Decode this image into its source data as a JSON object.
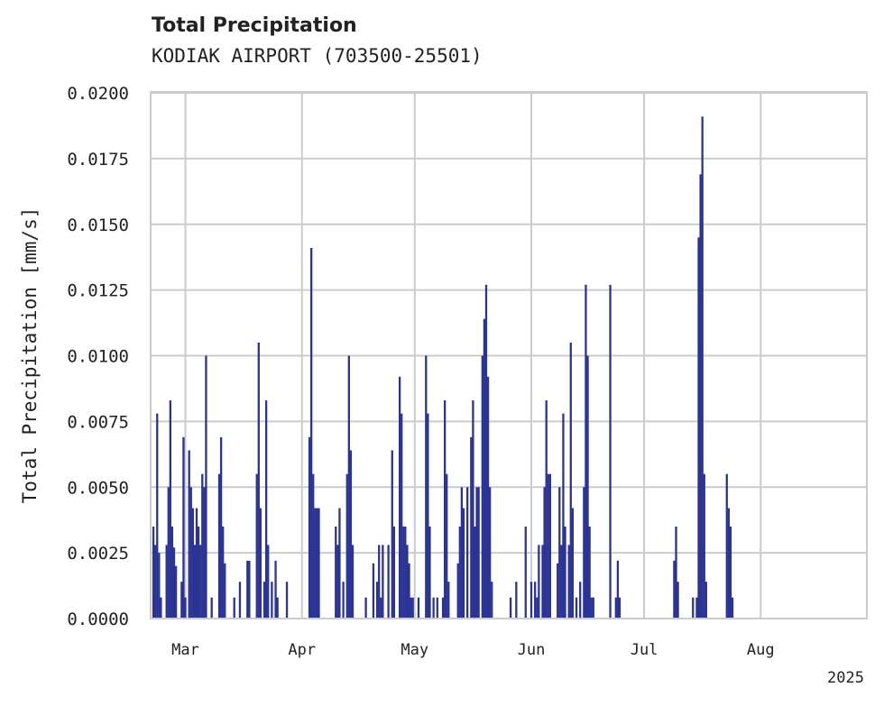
{
  "chart_data": {
    "type": "bar",
    "title": "Total Precipitation",
    "subtitle": "KODIAK AIRPORT (703500-25501)",
    "xlabel": "",
    "ylabel": "Total Precipitation [mm/s]",
    "ylim": [
      0,
      0.02
    ],
    "yticks": [
      "0.0000",
      "0.0025",
      "0.0050",
      "0.0075",
      "0.0100",
      "0.0125",
      "0.0150",
      "0.0175",
      "0.0200"
    ],
    "xlim": [
      "2025-02-20",
      "2025-08-29"
    ],
    "xticks": [
      {
        "date": "2025-03-01",
        "label": "Mar"
      },
      {
        "date": "2025-04-01",
        "label": "Apr"
      },
      {
        "date": "2025-05-01",
        "label": "May"
      },
      {
        "date": "2025-06-01",
        "label": "Jun"
      },
      {
        "date": "2025-07-01",
        "label": "Jul"
      },
      {
        "date": "2025-08-01",
        "label": "Aug"
      }
    ],
    "year_label": "2025",
    "grid": true,
    "color": "#2b3494",
    "series": [
      {
        "name": "",
        "values": [
          [
            "2025-02-20T12:00",
            0.0035
          ],
          [
            "2025-02-21T00:00",
            0.0028
          ],
          [
            "2025-02-21T12:00",
            0.0078
          ],
          [
            "2025-02-22T00:00",
            0.0025
          ],
          [
            "2025-02-22T12:00",
            0.0008
          ],
          [
            "2025-02-24T00:00",
            0.0028
          ],
          [
            "2025-02-24T12:00",
            0.005
          ],
          [
            "2025-02-25T00:00",
            0.0083
          ],
          [
            "2025-02-25T12:00",
            0.0035
          ],
          [
            "2025-02-26T00:00",
            0.0027
          ],
          [
            "2025-02-26T12:00",
            0.002
          ],
          [
            "2025-02-28T00:00",
            0.0014
          ],
          [
            "2025-02-28T12:00",
            0.0069
          ],
          [
            "2025-03-01T00:00",
            0.0008
          ],
          [
            "2025-03-02T00:00",
            0.0064
          ],
          [
            "2025-03-02T12:00",
            0.005
          ],
          [
            "2025-03-03T00:00",
            0.0042
          ],
          [
            "2025-03-03T12:00",
            0.0028
          ],
          [
            "2025-03-04T00:00",
            0.0042
          ],
          [
            "2025-03-04T12:00",
            0.0035
          ],
          [
            "2025-03-05T00:00",
            0.0028
          ],
          [
            "2025-03-05T12:00",
            0.0055
          ],
          [
            "2025-03-06T00:00",
            0.005
          ],
          [
            "2025-03-06T12:00",
            0.01
          ],
          [
            "2025-03-08T00:00",
            0.0008
          ],
          [
            "2025-03-10T00:00",
            0.0055
          ],
          [
            "2025-03-10T12:00",
            0.0069
          ],
          [
            "2025-03-11T00:00",
            0.0035
          ],
          [
            "2025-03-11T12:00",
            0.0021
          ],
          [
            "2025-03-14T00:00",
            0.0008
          ],
          [
            "2025-03-15T12:00",
            0.0014
          ],
          [
            "2025-03-17T12:00",
            0.0022
          ],
          [
            "2025-03-18T00:00",
            0.0022
          ],
          [
            "2025-03-20T00:00",
            0.0055
          ],
          [
            "2025-03-20T12:00",
            0.0105
          ],
          [
            "2025-03-21T00:00",
            0.0042
          ],
          [
            "2025-03-22T00:00",
            0.0014
          ],
          [
            "2025-03-22T12:00",
            0.0083
          ],
          [
            "2025-03-23T00:00",
            0.0028
          ],
          [
            "2025-03-24T00:00",
            0.0014
          ],
          [
            "2025-03-25T00:00",
            0.0022
          ],
          [
            "2025-03-25T12:00",
            0.0008
          ],
          [
            "2025-03-28T00:00",
            0.0014
          ],
          [
            "2025-04-03T00:00",
            0.0069
          ],
          [
            "2025-04-03T12:00",
            0.0141
          ],
          [
            "2025-04-04T00:00",
            0.0055
          ],
          [
            "2025-04-04T12:00",
            0.0042
          ],
          [
            "2025-04-05T00:00",
            0.0042
          ],
          [
            "2025-04-05T12:00",
            0.0042
          ],
          [
            "2025-04-10T00:00",
            0.0035
          ],
          [
            "2025-04-10T12:00",
            0.0028
          ],
          [
            "2025-04-11T00:00",
            0.0042
          ],
          [
            "2025-04-12T00:00",
            0.0014
          ],
          [
            "2025-04-13T00:00",
            0.0055
          ],
          [
            "2025-04-13T12:00",
            0.01
          ],
          [
            "2025-04-14T00:00",
            0.0064
          ],
          [
            "2025-04-14T12:00",
            0.0028
          ],
          [
            "2025-04-18T00:00",
            0.0008
          ],
          [
            "2025-04-20T00:00",
            0.0021
          ],
          [
            "2025-04-21T00:00",
            0.0014
          ],
          [
            "2025-04-21T12:00",
            0.0028
          ],
          [
            "2025-04-22T00:00",
            0.0008
          ],
          [
            "2025-04-22T12:00",
            0.0028
          ],
          [
            "2025-04-24T00:00",
            0.0028
          ],
          [
            "2025-04-25T00:00",
            0.0064
          ],
          [
            "2025-04-25T12:00",
            0.0035
          ],
          [
            "2025-04-27T00:00",
            0.0092
          ],
          [
            "2025-04-27T12:00",
            0.0078
          ],
          [
            "2025-04-28T00:00",
            0.0035
          ],
          [
            "2025-04-28T12:00",
            0.0035
          ],
          [
            "2025-04-29T00:00",
            0.0028
          ],
          [
            "2025-04-29T12:00",
            0.0021
          ],
          [
            "2025-04-30T00:00",
            0.0008
          ],
          [
            "2025-04-30T12:00",
            0.0008
          ],
          [
            "2025-05-02T00:00",
            0.0008
          ],
          [
            "2025-05-04T00:00",
            0.01
          ],
          [
            "2025-05-04T12:00",
            0.0078
          ],
          [
            "2025-05-05T00:00",
            0.0035
          ],
          [
            "2025-05-06T00:00",
            0.0008
          ],
          [
            "2025-05-07T00:00",
            0.0008
          ],
          [
            "2025-05-08T12:00",
            0.0008
          ],
          [
            "2025-05-09T00:00",
            0.0083
          ],
          [
            "2025-05-09T12:00",
            0.0055
          ],
          [
            "2025-05-10T00:00",
            0.0014
          ],
          [
            "2025-05-12T12:00",
            0.0021
          ],
          [
            "2025-05-13T00:00",
            0.0035
          ],
          [
            "2025-05-13T12:00",
            0.005
          ],
          [
            "2025-05-14T00:00",
            0.0042
          ],
          [
            "2025-05-15T00:00",
            0.005
          ],
          [
            "2025-05-16T00:00",
            0.0069
          ],
          [
            "2025-05-16T12:00",
            0.0083
          ],
          [
            "2025-05-17T00:00",
            0.0035
          ],
          [
            "2025-05-17T12:00",
            0.005
          ],
          [
            "2025-05-18T00:00",
            0.005
          ],
          [
            "2025-05-19T00:00",
            0.01
          ],
          [
            "2025-05-19T12:00",
            0.0114
          ],
          [
            "2025-05-20T00:00",
            0.0127
          ],
          [
            "2025-05-20T12:00",
            0.0092
          ],
          [
            "2025-05-21T00:00",
            0.005
          ],
          [
            "2025-05-21T12:00",
            0.0014
          ],
          [
            "2025-05-26T12:00",
            0.0008
          ],
          [
            "2025-05-28T00:00",
            0.0014
          ],
          [
            "2025-05-30T12:00",
            0.0035
          ],
          [
            "2025-06-01T00:00",
            0.0014
          ],
          [
            "2025-06-02T00:00",
            0.0014
          ],
          [
            "2025-06-02T12:00",
            0.0008
          ],
          [
            "2025-06-03T00:00",
            0.0028
          ],
          [
            "2025-06-04T00:00",
            0.0028
          ],
          [
            "2025-06-04T12:00",
            0.005
          ],
          [
            "2025-06-05T00:00",
            0.0083
          ],
          [
            "2025-06-05T12:00",
            0.0055
          ],
          [
            "2025-06-06T00:00",
            0.0055
          ],
          [
            "2025-06-08T00:00",
            0.0021
          ],
          [
            "2025-06-08T12:00",
            0.005
          ],
          [
            "2025-06-09T00:00",
            0.0028
          ],
          [
            "2025-06-09T12:00",
            0.0078
          ],
          [
            "2025-06-10T00:00",
            0.0035
          ],
          [
            "2025-06-11T00:00",
            0.0028
          ],
          [
            "2025-06-11T12:00",
            0.0105
          ],
          [
            "2025-06-12T00:00",
            0.0042
          ],
          [
            "2025-06-13T00:00",
            0.0008
          ],
          [
            "2025-06-14T00:00",
            0.0014
          ],
          [
            "2025-06-15T00:00",
            0.005
          ],
          [
            "2025-06-15T12:00",
            0.0127
          ],
          [
            "2025-06-16T00:00",
            0.01
          ],
          [
            "2025-06-16T12:00",
            0.0035
          ],
          [
            "2025-06-17T00:00",
            0.0008
          ],
          [
            "2025-06-17T12:00",
            0.0008
          ],
          [
            "2025-06-22T00:00",
            0.0127
          ],
          [
            "2025-06-23T12:00",
            0.0008
          ],
          [
            "2025-06-24T00:00",
            0.0022
          ],
          [
            "2025-06-24T12:00",
            0.0008
          ],
          [
            "2025-07-09T00:00",
            0.0022
          ],
          [
            "2025-07-09T12:00",
            0.0035
          ],
          [
            "2025-07-10T00:00",
            0.0014
          ],
          [
            "2025-07-14T00:00",
            0.0008
          ],
          [
            "2025-07-15T00:00",
            0.0008
          ],
          [
            "2025-07-15T12:00",
            0.0145
          ],
          [
            "2025-07-16T00:00",
            0.0169
          ],
          [
            "2025-07-16T12:00",
            0.0191
          ],
          [
            "2025-07-17T00:00",
            0.0055
          ],
          [
            "2025-07-17T12:00",
            0.0014
          ],
          [
            "2025-07-23T00:00",
            0.0055
          ],
          [
            "2025-07-23T12:00",
            0.0042
          ],
          [
            "2025-07-24T00:00",
            0.0035
          ],
          [
            "2025-07-24T12:00",
            0.0008
          ]
        ]
      }
    ]
  }
}
